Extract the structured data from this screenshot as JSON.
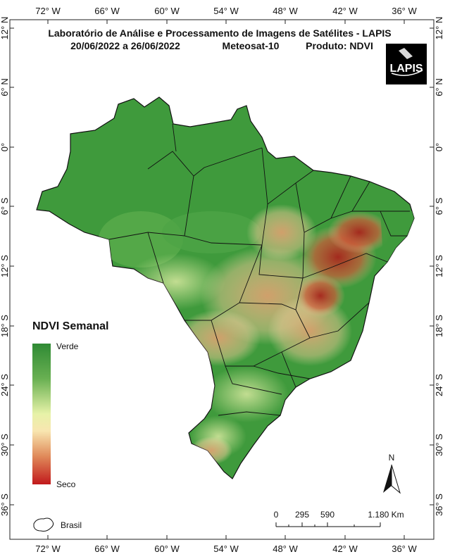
{
  "header": {
    "title_line1": "Laboratório de Análise e Processamento de Imagens de Satélites - LAPIS",
    "date_range": "20/06/2022  a  26/06/2022",
    "satellite": "Meteosat-10",
    "product": "Produto: NDVI"
  },
  "logo": {
    "text": "LAPIS"
  },
  "axes": {
    "longitude_labels": [
      "72° W",
      "66° W",
      "60° W",
      "54° W",
      "48° W",
      "42° W",
      "36° W"
    ],
    "latitude_labels": [
      "12° N",
      "6° N",
      "0°",
      "6° S",
      "12° S",
      "18° S",
      "24° S",
      "30° S",
      "36° S"
    ]
  },
  "legend": {
    "title": "NDVI Semanal",
    "high_label": "Verde",
    "low_label": "Seco",
    "colors": {
      "high": "#2f8a34",
      "mid": "#f8f3b0",
      "low": "#c1191c"
    }
  },
  "country_legend": {
    "label": "Brasil"
  },
  "north_arrow": {
    "label": "N"
  },
  "scale_bar": {
    "labels": [
      "0",
      "295",
      "590",
      "1.180 Km"
    ]
  }
}
